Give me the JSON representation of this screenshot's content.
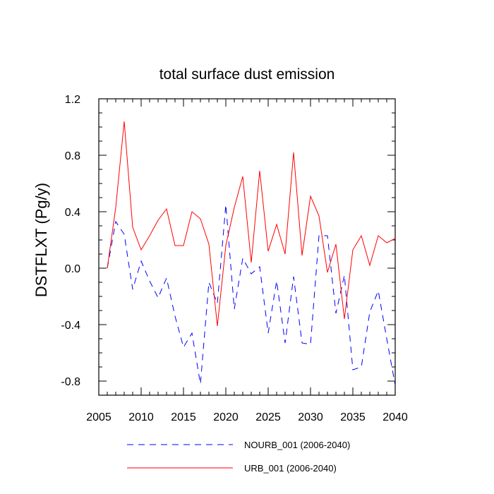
{
  "chart_data": {
    "type": "line",
    "title": "total surface dust emission",
    "ylabel": "DSTFLXT  (Pg/y)",
    "xlabel": "",
    "xlim": [
      2005,
      2040
    ],
    "ylim": [
      -0.9,
      1.2
    ],
    "x_ticks": [
      2005,
      2010,
      2015,
      2020,
      2025,
      2030,
      2035,
      2040
    ],
    "x_tick_labels": [
      "2005",
      "2010",
      "2015",
      "2020",
      "2025",
      "2030",
      "2035",
      "2040"
    ],
    "y_ticks": [
      -0.8,
      -0.4,
      0.0,
      0.4,
      0.8,
      1.2
    ],
    "y_tick_labels": [
      "-0.8",
      "-0.4",
      "0.0",
      "0.4",
      "0.8",
      "1.2"
    ],
    "grid": false,
    "legend_position": "bottom",
    "x": [
      2006,
      2007,
      2008,
      2009,
      2010,
      2011,
      2012,
      2013,
      2014,
      2015,
      2016,
      2017,
      2018,
      2019,
      2020,
      2021,
      2022,
      2023,
      2024,
      2025,
      2026,
      2027,
      2028,
      2029,
      2030,
      2031,
      2032,
      2033,
      2034,
      2035,
      2036,
      2037,
      2038,
      2039,
      2040
    ],
    "series": [
      {
        "name": "NOURB_001 (2006-2040)",
        "color": "#0000ff",
        "style": "dashed",
        "values": [
          0.0,
          0.33,
          0.24,
          -0.15,
          0.05,
          -0.09,
          -0.21,
          -0.07,
          -0.34,
          -0.56,
          -0.46,
          -0.82,
          -0.1,
          -0.25,
          0.45,
          -0.29,
          0.07,
          -0.04,
          0.01,
          -0.46,
          -0.09,
          -0.53,
          -0.06,
          -0.53,
          -0.54,
          0.23,
          0.23,
          -0.32,
          -0.05,
          -0.72,
          -0.7,
          -0.31,
          -0.16,
          -0.5,
          -0.83
        ]
      },
      {
        "name": "URB_001 (2006-2040)",
        "color": "#ff0000",
        "style": "solid",
        "values": [
          0.0,
          0.43,
          1.04,
          0.29,
          0.13,
          0.23,
          0.34,
          0.42,
          0.16,
          0.16,
          0.4,
          0.35,
          0.17,
          -0.41,
          0.16,
          0.43,
          0.65,
          0.04,
          0.69,
          0.12,
          0.31,
          0.1,
          0.82,
          0.09,
          0.51,
          0.37,
          -0.03,
          0.17,
          -0.36,
          0.13,
          0.23,
          0.02,
          0.23,
          0.18,
          0.21
        ]
      }
    ]
  }
}
